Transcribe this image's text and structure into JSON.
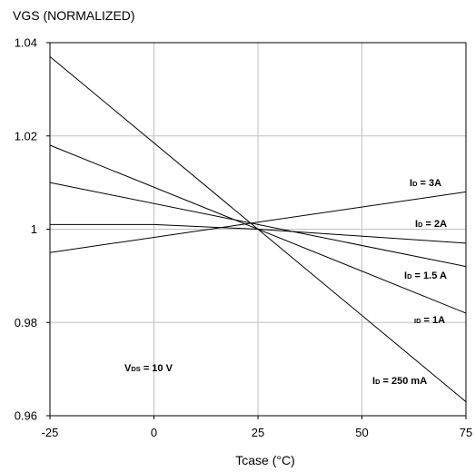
{
  "chart_data": {
    "type": "line",
    "ylabel": "VGS (NORMALIZED)",
    "xlabel": "Tcase (°C)",
    "xlim": [
      -25,
      75
    ],
    "ylim": [
      0.96,
      1.04
    ],
    "x_ticks": [
      -25,
      0,
      25,
      50,
      75
    ],
    "x_tick_labels": [
      "-25",
      "0",
      "25",
      "50",
      "75"
    ],
    "y_ticks": [
      0.96,
      0.98,
      1.0,
      1.02,
      1.04
    ],
    "y_tick_labels": [
      "0.96",
      "0.98",
      "1",
      "1.02",
      "1.04"
    ],
    "grid": true,
    "series": [
      {
        "name": "ID = 250 mA",
        "x": [
          -25,
          75
        ],
        "y": [
          1.037,
          0.963
        ]
      },
      {
        "name": "ID = 1A",
        "x": [
          -25,
          75
        ],
        "y": [
          1.018,
          0.982
        ]
      },
      {
        "name": "ID = 1.5 A",
        "x": [
          -25,
          75
        ],
        "y": [
          1.01,
          0.992
        ]
      },
      {
        "name": "ID = 2A",
        "x": [
          -25,
          0,
          25,
          75
        ],
        "y": [
          1.001,
          1.001,
          1.0,
          0.997
        ]
      },
      {
        "name": "ID = 3A",
        "x": [
          -25,
          75
        ],
        "y": [
          0.995,
          1.008
        ]
      }
    ],
    "annotations": [
      {
        "id": "id3a",
        "prefix": "I",
        "sub": "D",
        "rest": " = 3A"
      },
      {
        "id": "id2a",
        "prefix": "I",
        "sub": "D",
        "rest": " = 2A"
      },
      {
        "id": "id15a",
        "prefix": "I",
        "sub": "D",
        "rest": " = 1.5 A"
      },
      {
        "id": "id1a",
        "prefix": "",
        "sub": "ID",
        "rest": " = 1A"
      },
      {
        "id": "id250",
        "prefix": "I",
        "sub": "D",
        "rest": " = 250 mA"
      },
      {
        "id": "vds",
        "prefix": "V",
        "sub": "DS",
        "rest": " = 10 V"
      }
    ]
  }
}
